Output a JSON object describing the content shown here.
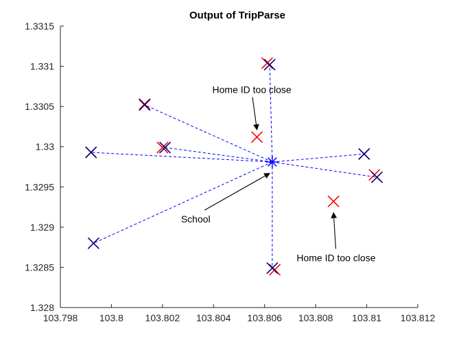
{
  "chart_data": {
    "type": "scatter",
    "title": "Output of TripParse",
    "xlabel": "",
    "ylabel": "",
    "xlim": [
      103.798,
      103.812
    ],
    "ylim": [
      1.328,
      1.3315
    ],
    "xticks": [
      "103.798",
      "103.8",
      "103.802",
      "103.804",
      "103.806",
      "103.808",
      "103.81",
      "103.812"
    ],
    "yticks": [
      "1.328",
      "1.3285",
      "1.329",
      "1.3295",
      "1.33",
      "1.3305",
      "1.331",
      "1.3315"
    ],
    "grid": false,
    "colors": {
      "home_marker": "#ff0000",
      "assigned_marker": "#00007f",
      "link_line": "#0000ff",
      "axis": "#262626"
    },
    "school": {
      "x": 103.8063,
      "y": 1.32981,
      "marker": "asterisk"
    },
    "series": [
      {
        "marker": "x",
        "color": "#ff0000",
        "x": [
          103.7992,
          103.8013,
          103.802,
          103.8061,
          103.8057,
          103.8099,
          103.8103,
          103.8087,
          103.8064
        ],
        "y": [
          1.32993,
          1.33053,
          1.32999,
          1.33104,
          1.33012,
          1.32991,
          1.32965,
          1.32932,
          1.32847
        ]
      },
      {
        "marker": "x",
        "color": "#00007f",
        "x": [
          103.7992,
          103.7993,
          103.8013,
          103.8021,
          103.8062,
          103.8099,
          103.8104,
          103.8063
        ],
        "y": [
          1.32993,
          1.3288,
          1.33052,
          1.32999,
          1.33102,
          1.32991,
          1.32962,
          1.32849
        ]
      }
    ],
    "annotations": [
      {
        "text": "Home ID too close",
        "text_x": 103.8055,
        "text_y": 1.33071,
        "arrow_to_x": 103.8057,
        "arrow_to_y": 1.33021
      },
      {
        "text": "School",
        "text_x": 103.8033,
        "text_y": 1.3291,
        "arrow_to_x": 103.8062,
        "arrow_to_y": 1.32967
      },
      {
        "text": "Home ID too close",
        "text_x": 103.8088,
        "text_y": 1.32862,
        "arrow_to_x": 103.8087,
        "arrow_to_y": 1.32918
      }
    ]
  }
}
